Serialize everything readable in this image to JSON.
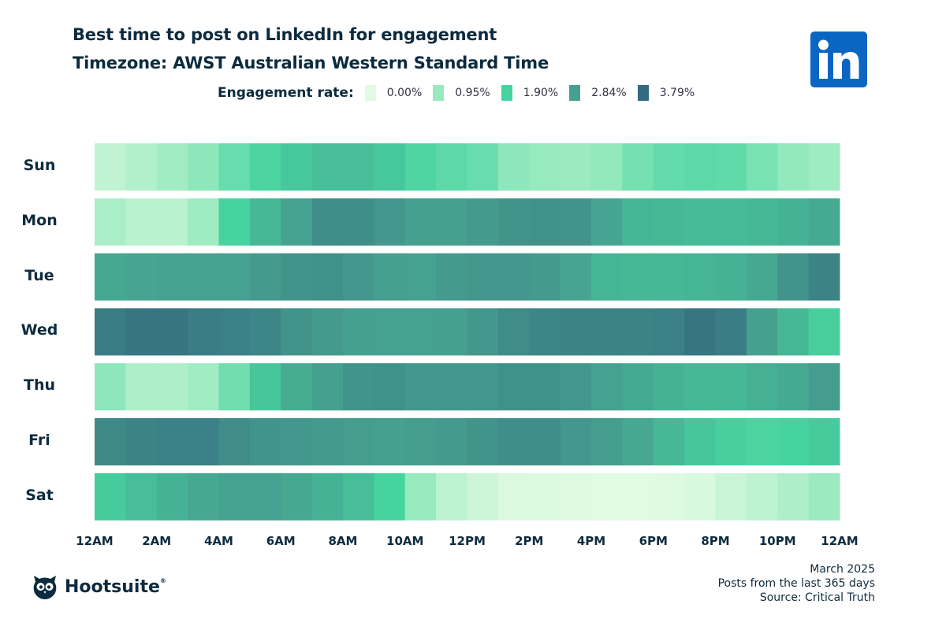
{
  "title": "Best time to post on LinkedIn for engagement",
  "subtitle": "Timezone: AWST   Australian Western Standard Time",
  "legend": {
    "label": "Engagement rate:",
    "items": [
      {
        "value": "0.00%",
        "color": "#e0fbe2"
      },
      {
        "value": "0.95%",
        "color": "#97e9be"
      },
      {
        "value": "1.90%",
        "color": "#47d39f"
      },
      {
        "value": "2.84%",
        "color": "#46a08f"
      },
      {
        "value": "3.79%",
        "color": "#336a7f"
      }
    ]
  },
  "logos": {
    "linkedin": "in",
    "hootsuite": "Hootsuite",
    "hootsuite_reg": "®"
  },
  "footer": {
    "date": "March 2025",
    "period": "Posts from the last 365 days",
    "source": "Source: Critical Truth"
  },
  "chart_data": {
    "type": "heatmap",
    "value_unit": "%",
    "color_range": [
      0,
      3.79
    ],
    "rows": [
      "Sun",
      "Mon",
      "Tue",
      "Wed",
      "Thu",
      "Fri",
      "Sat"
    ],
    "x_tick_labels": [
      "12AM",
      "2AM",
      "4AM",
      "6AM",
      "8AM",
      "10AM",
      "12PM",
      "2PM",
      "4PM",
      "6PM",
      "8PM",
      "10PM",
      "12AM"
    ],
    "hours": 24,
    "values": [
      [
        0.4,
        0.6,
        0.8,
        1.05,
        1.5,
        1.85,
        2.1,
        2.3,
        2.3,
        2.1,
        1.8,
        1.65,
        1.5,
        1.05,
        0.95,
        0.9,
        1.0,
        1.35,
        1.55,
        1.65,
        1.6,
        1.3,
        1.0,
        0.85
      ],
      [
        0.7,
        0.5,
        0.5,
        0.85,
        1.9,
        2.4,
        2.8,
        3.15,
        3.15,
        3.0,
        2.85,
        2.85,
        2.95,
        3.05,
        3.1,
        3.05,
        2.75,
        2.45,
        2.4,
        2.35,
        2.35,
        2.4,
        2.5,
        2.65
      ],
      [
        2.7,
        2.75,
        2.8,
        2.8,
        2.8,
        2.95,
        3.05,
        3.1,
        3.0,
        2.85,
        2.8,
        2.95,
        3.0,
        3.0,
        2.95,
        2.75,
        2.45,
        2.4,
        2.4,
        2.45,
        2.5,
        2.7,
        3.05,
        3.35
      ],
      [
        3.45,
        3.6,
        3.6,
        3.45,
        3.4,
        3.3,
        3.05,
        2.95,
        2.85,
        2.8,
        2.8,
        2.85,
        3.0,
        3.2,
        3.3,
        3.35,
        3.35,
        3.35,
        3.4,
        3.6,
        3.45,
        2.85,
        2.4,
        1.95
      ],
      [
        1.05,
        0.65,
        0.65,
        0.8,
        1.4,
        2.15,
        2.6,
        2.85,
        3.05,
        3.1,
        3.0,
        3.0,
        3.0,
        3.1,
        3.1,
        3.0,
        2.8,
        2.65,
        2.5,
        2.4,
        2.4,
        2.55,
        2.65,
        2.9
      ],
      [
        3.25,
        3.35,
        3.4,
        3.4,
        3.2,
        3.05,
        3.0,
        2.95,
        2.9,
        2.85,
        2.9,
        2.95,
        3.05,
        3.15,
        3.15,
        3.0,
        2.9,
        2.7,
        2.4,
        2.15,
        1.95,
        1.85,
        1.9,
        2.05
      ],
      [
        2.05,
        2.3,
        2.5,
        2.7,
        2.8,
        2.8,
        2.7,
        2.5,
        2.3,
        1.9,
        0.95,
        0.45,
        0.25,
        0.08,
        0.05,
        0.02,
        0.0,
        0.0,
        0.02,
        0.1,
        0.3,
        0.45,
        0.65,
        0.9
      ]
    ]
  }
}
